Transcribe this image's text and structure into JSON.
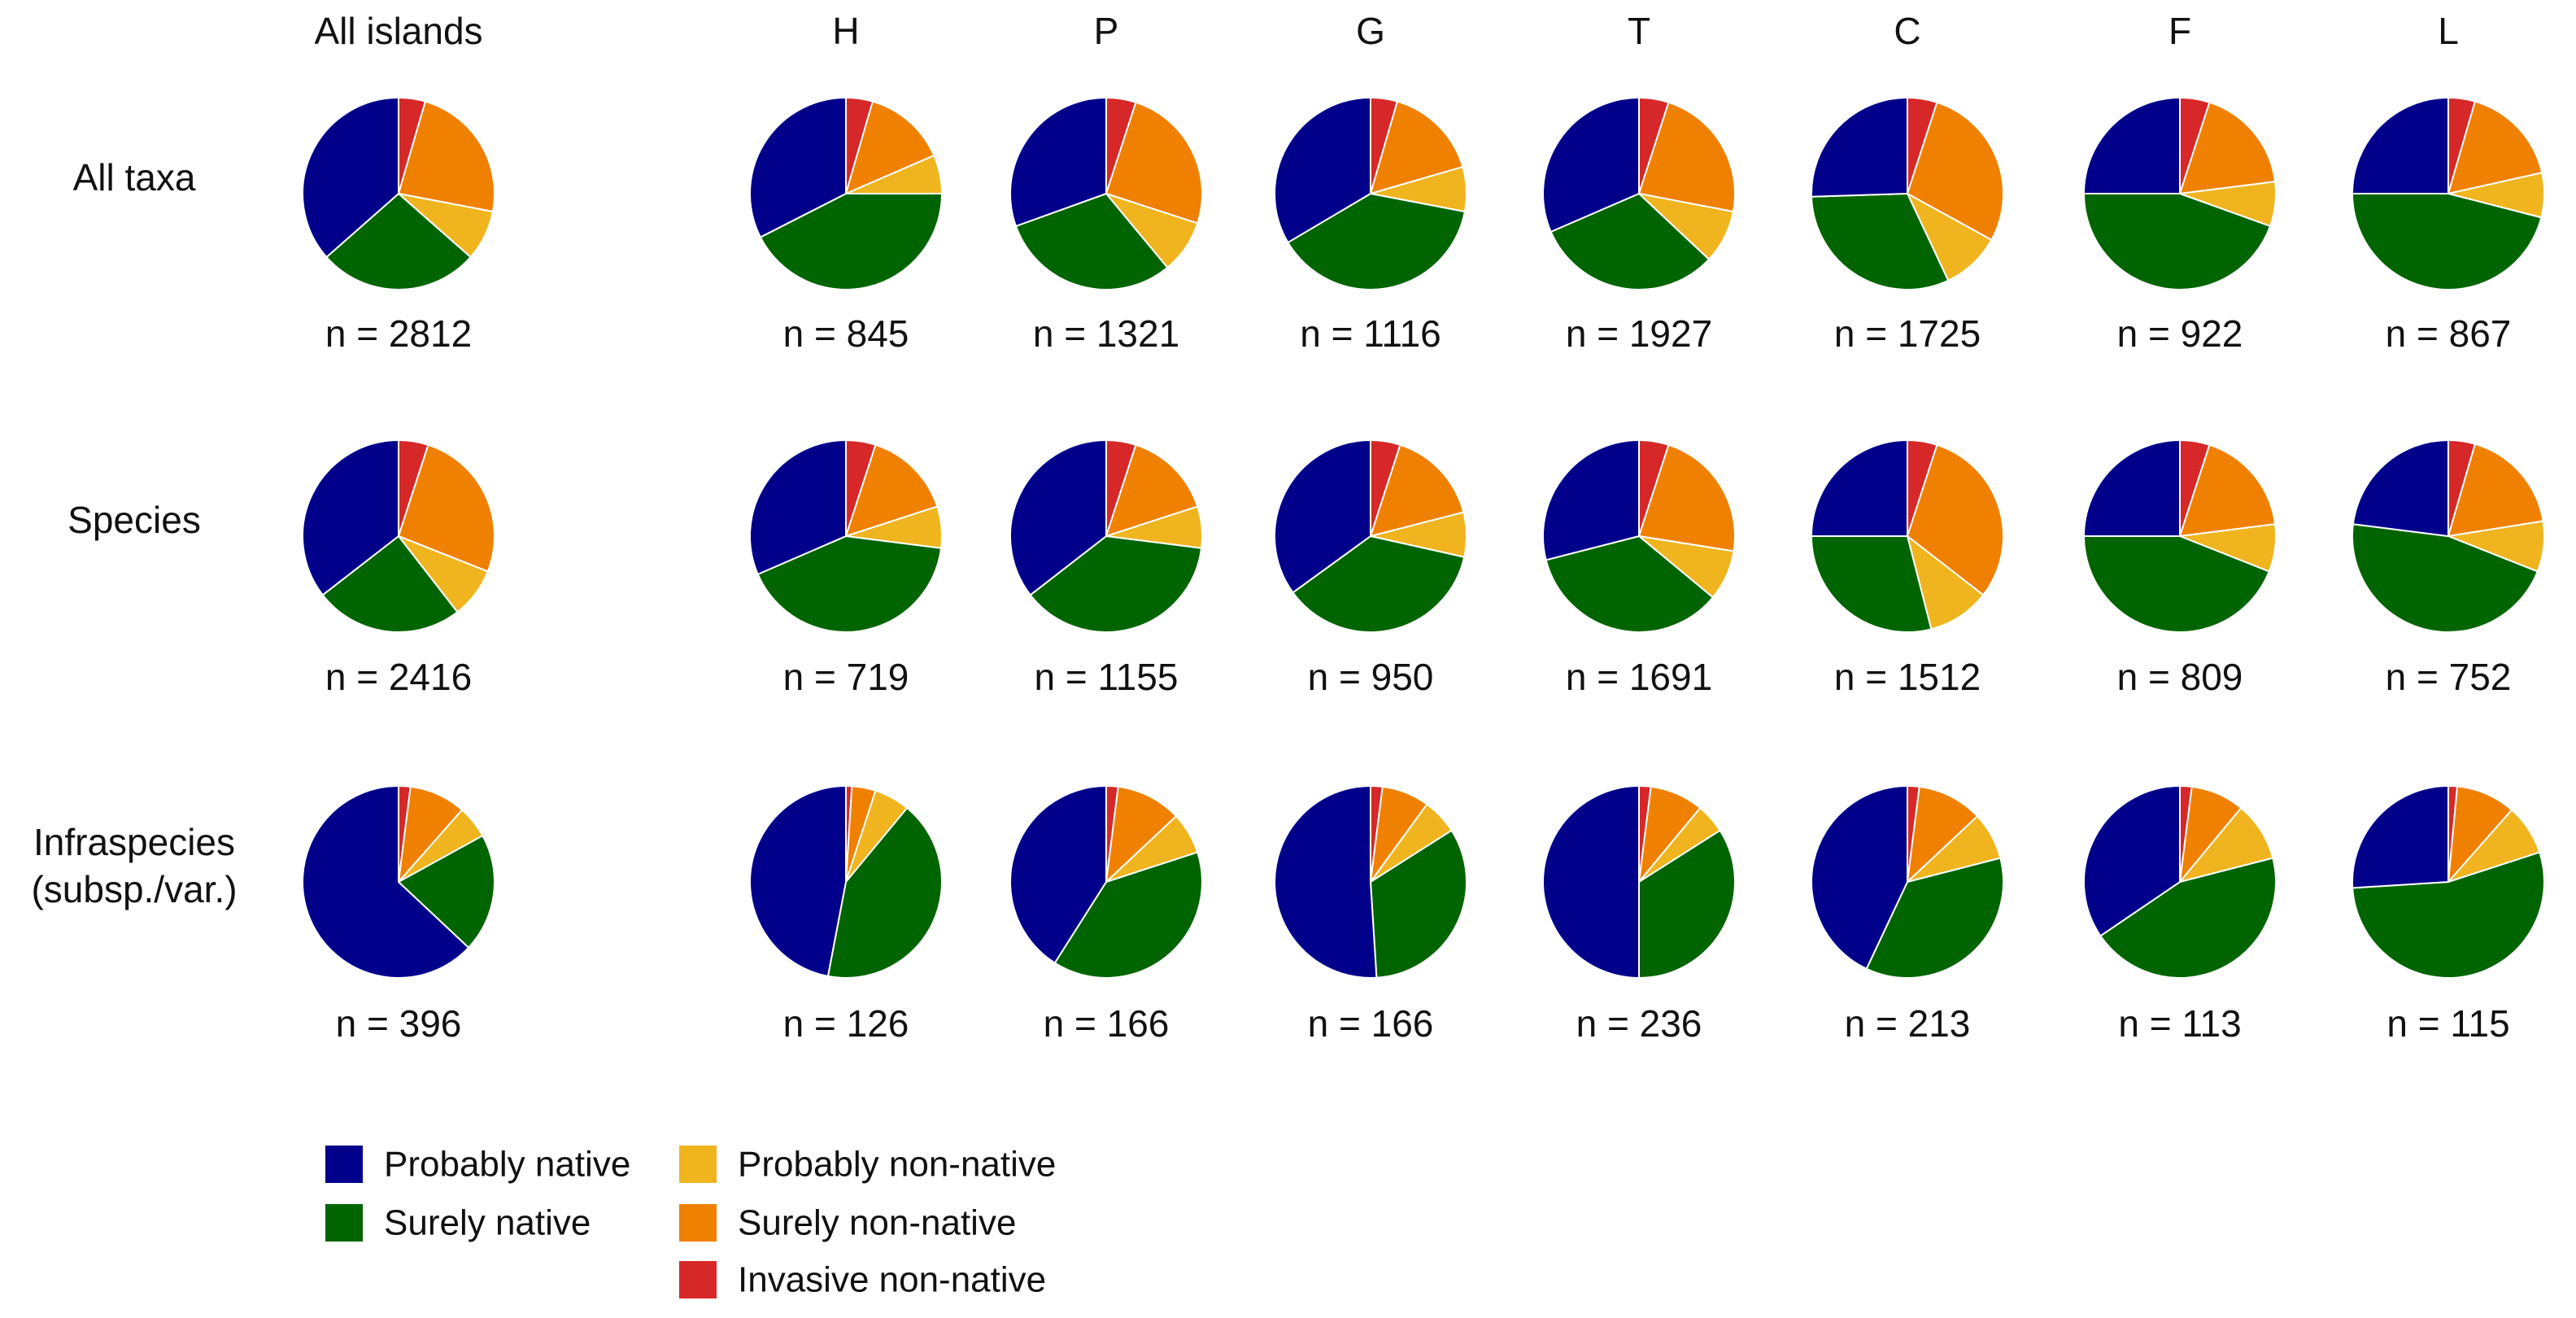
{
  "chart_data": {
    "type": "pie",
    "columns": [
      "All islands",
      "H",
      "P",
      "G",
      "T",
      "C",
      "F",
      "L"
    ],
    "rows": [
      {
        "label": [
          "All taxa"
        ]
      },
      {
        "label": [
          "Species"
        ]
      },
      {
        "label": [
          "Infraspecies",
          "(subsp./var.)"
        ]
      }
    ],
    "categories": [
      "Invasive non-native",
      "Surely non-native",
      "Probably non-native",
      "Surely native",
      "Probably native"
    ],
    "colors": {
      "Probably native": "#00008b",
      "Surely native": "#006400",
      "Probably non-native": "#f0b41e",
      "Surely non-native": "#f08000",
      "Invasive non-native": "#d62828"
    },
    "slice_order_clockwise_from_top": [
      "Invasive non-native",
      "Surely non-native",
      "Probably non-native",
      "Surely native",
      "Probably native"
    ],
    "legend": {
      "columns": [
        [
          "Probably native",
          "Surely native"
        ],
        [
          "Probably non-native",
          "Surely non-native",
          "Invasive non-native"
        ]
      ]
    },
    "pies": [
      [
        {
          "n": "n = 2812",
          "shares": [
            0.045,
            0.235,
            0.085,
            0.27,
            0.365
          ]
        },
        {
          "n": "n = 845",
          "shares": [
            0.045,
            0.14,
            0.065,
            0.425,
            0.325
          ]
        },
        {
          "n": "n = 1321",
          "shares": [
            0.05,
            0.25,
            0.09,
            0.305,
            0.305
          ]
        },
        {
          "n": "n = 1116",
          "shares": [
            0.045,
            0.16,
            0.075,
            0.385,
            0.335
          ]
        },
        {
          "n": "n = 1927",
          "shares": [
            0.05,
            0.23,
            0.09,
            0.315,
            0.315
          ]
        },
        {
          "n": "n = 1725",
          "shares": [
            0.05,
            0.28,
            0.1,
            0.315,
            0.255
          ]
        },
        {
          "n": "n = 922",
          "shares": [
            0.05,
            0.18,
            0.075,
            0.445,
            0.25
          ]
        },
        {
          "n": "n = 867",
          "shares": [
            0.045,
            0.17,
            0.075,
            0.46,
            0.25
          ]
        }
      ],
      [
        {
          "n": "n = 2416",
          "shares": [
            0.05,
            0.26,
            0.085,
            0.25,
            0.355
          ]
        },
        {
          "n": "n = 719",
          "shares": [
            0.05,
            0.15,
            0.07,
            0.415,
            0.315
          ]
        },
        {
          "n": "n = 1155",
          "shares": [
            0.05,
            0.15,
            0.07,
            0.375,
            0.355
          ]
        },
        {
          "n": "n = 950",
          "shares": [
            0.05,
            0.16,
            0.075,
            0.365,
            0.35
          ]
        },
        {
          "n": "n = 1691",
          "shares": [
            0.05,
            0.225,
            0.085,
            0.35,
            0.29
          ]
        },
        {
          "n": "n = 1512",
          "shares": [
            0.05,
            0.305,
            0.105,
            0.29,
            0.25
          ]
        },
        {
          "n": "n = 809",
          "shares": [
            0.05,
            0.18,
            0.08,
            0.44,
            0.25
          ]
        },
        {
          "n": "n = 752",
          "shares": [
            0.045,
            0.18,
            0.085,
            0.46,
            0.23
          ]
        }
      ],
      [
        {
          "n": "n = 396",
          "shares": [
            0.02,
            0.095,
            0.055,
            0.2,
            0.63
          ]
        },
        {
          "n": "n = 126",
          "shares": [
            0.01,
            0.04,
            0.06,
            0.42,
            0.47
          ]
        },
        {
          "n": "n = 166",
          "shares": [
            0.02,
            0.11,
            0.07,
            0.39,
            0.41
          ]
        },
        {
          "n": "n = 166",
          "shares": [
            0.02,
            0.08,
            0.06,
            0.33,
            0.51
          ]
        },
        {
          "n": "n = 236",
          "shares": [
            0.02,
            0.09,
            0.05,
            0.34,
            0.5
          ]
        },
        {
          "n": "n = 213",
          "shares": [
            0.02,
            0.11,
            0.08,
            0.36,
            0.43
          ]
        },
        {
          "n": "n = 113",
          "shares": [
            0.02,
            0.09,
            0.1,
            0.445,
            0.345
          ]
        },
        {
          "n": "n = 115",
          "shares": [
            0.015,
            0.1,
            0.085,
            0.54,
            0.26
          ]
        }
      ]
    ]
  }
}
